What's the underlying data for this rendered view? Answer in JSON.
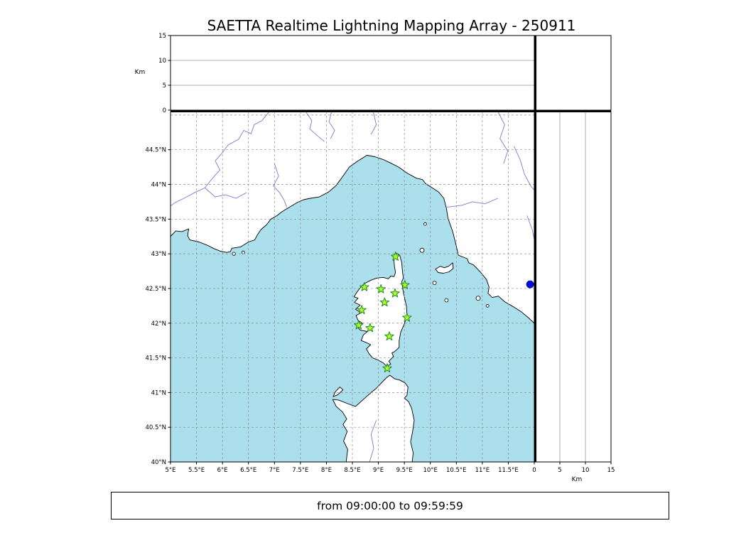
{
  "title": "SAETTA Realtime Lightning Mapping Array - 250911",
  "footer": {
    "text": "from 09:00:00 to 09:59:59"
  },
  "axes": {
    "km_label_left": "Km",
    "km_label_bottom": "Km",
    "alt_tick_labels": [
      "0",
      "5",
      "10",
      "15"
    ],
    "km_tick_labels": [
      "0",
      "5",
      "10",
      "15"
    ],
    "lon_tick_labels": [
      "5°E",
      "5.5°E",
      "6°E",
      "6.5°E",
      "7°E",
      "7.5°E",
      "8°E",
      "8.5°E",
      "9°E",
      "9.5°E",
      "10°E",
      "10.5°E",
      "11°E",
      "11.5°E"
    ],
    "lat_tick_labels": [
      "40°N",
      "40.5°N",
      "41°N",
      "41.5°N",
      "42°N",
      "42.5°N",
      "43°N",
      "43.5°N",
      "44°N",
      "44.5°N"
    ]
  },
  "colors": {
    "sea": "#abdfec",
    "land": "#ffffff",
    "coast": "#000000",
    "river": "#7a7ad1",
    "grid": "#8c8c8c",
    "panel_grid": "#999999",
    "station_fill": "#adff2f",
    "station_edge": "#1e8b1e",
    "event": "#0a0acc",
    "frame": "#000000"
  },
  "chart_data": {
    "type": "scatter",
    "title": "SAETTA Realtime Lightning Mapping Array - 250911",
    "time_window": "from 09:00:00 to 09:59:59",
    "map_extent": {
      "lon_min": 5.0,
      "lon_max": 12.0,
      "lat_min": 40.0,
      "lat_max": 45.05
    },
    "altitude_km_range": [
      0,
      15
    ],
    "altitude_ticks": [
      0,
      5,
      10,
      15
    ],
    "altitude_gridlines_km": [
      5,
      10
    ],
    "lon_ticks": [
      5,
      5.5,
      6,
      6.5,
      7,
      7.5,
      8,
      8.5,
      9,
      9.5,
      10,
      10.5,
      11,
      11.5
    ],
    "lat_ticks": [
      40,
      40.5,
      41,
      41.5,
      42,
      42.5,
      43,
      43.5,
      44,
      44.5
    ],
    "lon_gridlines": [
      5.5,
      6,
      6.5,
      7,
      7.5,
      8,
      8.5,
      9,
      9.5,
      10,
      10.5,
      11,
      11.5
    ],
    "lat_gridlines": [
      40.5,
      41,
      41.5,
      42,
      42.5,
      43,
      43.5,
      44,
      44.5,
      45
    ],
    "stations": [
      {
        "lon": 9.33,
        "lat": 42.96
      },
      {
        "lon": 8.73,
        "lat": 42.52
      },
      {
        "lon": 9.05,
        "lat": 42.49
      },
      {
        "lon": 9.51,
        "lat": 42.55
      },
      {
        "lon": 9.32,
        "lat": 42.43
      },
      {
        "lon": 9.12,
        "lat": 42.3
      },
      {
        "lon": 8.68,
        "lat": 42.19
      },
      {
        "lon": 9.55,
        "lat": 42.08
      },
      {
        "lon": 8.62,
        "lat": 41.97
      },
      {
        "lon": 8.84,
        "lat": 41.93
      },
      {
        "lon": 9.21,
        "lat": 41.81
      },
      {
        "lon": 9.17,
        "lat": 41.35
      }
    ],
    "events": [
      {
        "lon": 11.92,
        "lat": 42.56
      }
    ]
  },
  "basemap": {
    "mainland": [
      [
        5.0,
        43.25
      ],
      [
        5.1,
        43.33
      ],
      [
        5.22,
        43.32
      ],
      [
        5.35,
        43.36
      ],
      [
        5.33,
        43.26
      ],
      [
        5.37,
        43.2
      ],
      [
        5.55,
        43.17
      ],
      [
        5.72,
        43.12
      ],
      [
        5.82,
        43.08
      ],
      [
        5.95,
        43.04
      ],
      [
        6.08,
        43.02
      ],
      [
        6.15,
        43.03
      ],
      [
        6.18,
        43.08
      ],
      [
        6.35,
        43.1
      ],
      [
        6.5,
        43.17
      ],
      [
        6.62,
        43.2
      ],
      [
        6.67,
        43.27
      ],
      [
        6.74,
        43.35
      ],
      [
        6.85,
        43.42
      ],
      [
        6.93,
        43.5
      ],
      [
        7.05,
        43.55
      ],
      [
        7.13,
        43.6
      ],
      [
        7.26,
        43.66
      ],
      [
        7.44,
        43.74
      ],
      [
        7.56,
        43.78
      ],
      [
        7.69,
        43.8
      ],
      [
        7.86,
        43.82
      ],
      [
        8.04,
        43.89
      ],
      [
        8.18,
        43.98
      ],
      [
        8.31,
        44.11
      ],
      [
        8.44,
        44.25
      ],
      [
        8.61,
        44.34
      ],
      [
        8.78,
        44.42
      ],
      [
        8.93,
        44.4
      ],
      [
        9.09,
        44.36
      ],
      [
        9.23,
        44.31
      ],
      [
        9.39,
        44.25
      ],
      [
        9.56,
        44.16
      ],
      [
        9.73,
        44.09
      ],
      [
        9.85,
        44.07
      ],
      [
        9.91,
        44.01
      ],
      [
        10.04,
        43.95
      ],
      [
        10.16,
        43.89
      ],
      [
        10.26,
        43.8
      ],
      [
        10.31,
        43.65
      ],
      [
        10.34,
        43.51
      ],
      [
        10.43,
        43.32
      ],
      [
        10.49,
        43.14
      ],
      [
        10.54,
        42.98
      ],
      [
        10.64,
        42.95
      ],
      [
        10.71,
        42.93
      ],
      [
        10.74,
        42.87
      ],
      [
        10.83,
        42.84
      ],
      [
        10.96,
        42.74
      ],
      [
        11.08,
        42.63
      ],
      [
        11.13,
        42.52
      ],
      [
        11.11,
        42.43
      ],
      [
        11.19,
        42.37
      ],
      [
        11.31,
        42.39
      ],
      [
        11.43,
        42.31
      ],
      [
        11.59,
        42.24
      ],
      [
        11.74,
        42.17
      ],
      [
        11.87,
        42.09
      ],
      [
        12.0,
        42.0
      ],
      [
        12.0,
        45.05
      ],
      [
        5.0,
        45.05
      ]
    ],
    "corsica": [
      [
        9.35,
        43.01
      ],
      [
        9.41,
        42.98
      ],
      [
        9.45,
        42.87
      ],
      [
        9.46,
        42.77
      ],
      [
        9.48,
        42.65
      ],
      [
        9.45,
        42.6
      ],
      [
        9.47,
        42.49
      ],
      [
        9.5,
        42.38
      ],
      [
        9.54,
        42.24
      ],
      [
        9.55,
        42.11
      ],
      [
        9.5,
        41.99
      ],
      [
        9.43,
        41.87
      ],
      [
        9.4,
        41.75
      ],
      [
        9.4,
        41.65
      ],
      [
        9.31,
        41.59
      ],
      [
        9.26,
        41.57
      ],
      [
        9.29,
        41.52
      ],
      [
        9.2,
        41.45
      ],
      [
        9.24,
        41.41
      ],
      [
        9.16,
        41.38
      ],
      [
        9.09,
        41.43
      ],
      [
        8.99,
        41.47
      ],
      [
        8.89,
        41.5
      ],
      [
        8.82,
        41.56
      ],
      [
        8.77,
        41.63
      ],
      [
        8.85,
        41.69
      ],
      [
        8.77,
        41.72
      ],
      [
        8.67,
        41.75
      ],
      [
        8.71,
        41.83
      ],
      [
        8.79,
        41.88
      ],
      [
        8.65,
        41.9
      ],
      [
        8.59,
        41.95
      ],
      [
        8.69,
        42.0
      ],
      [
        8.61,
        42.04
      ],
      [
        8.57,
        42.11
      ],
      [
        8.67,
        42.15
      ],
      [
        8.56,
        42.2
      ],
      [
        8.65,
        42.26
      ],
      [
        8.54,
        42.3
      ],
      [
        8.61,
        42.36
      ],
      [
        8.53,
        42.38
      ],
      [
        8.59,
        42.45
      ],
      [
        8.65,
        42.51
      ],
      [
        8.73,
        42.57
      ],
      [
        8.86,
        42.62
      ],
      [
        8.97,
        42.65
      ],
      [
        9.09,
        42.66
      ],
      [
        9.19,
        42.64
      ],
      [
        9.24,
        42.68
      ],
      [
        9.3,
        42.67
      ],
      [
        9.33,
        42.73
      ],
      [
        9.31,
        42.82
      ],
      [
        9.3,
        42.91
      ],
      [
        9.32,
        42.98
      ]
    ],
    "sardinia": [
      [
        8.38,
        40.0
      ],
      [
        8.41,
        40.18
      ],
      [
        8.33,
        40.3
      ],
      [
        8.4,
        40.44
      ],
      [
        8.32,
        40.54
      ],
      [
        8.39,
        40.62
      ],
      [
        8.31,
        40.72
      ],
      [
        8.19,
        40.8
      ],
      [
        8.12,
        40.9
      ],
      [
        8.24,
        40.89
      ],
      [
        8.41,
        40.84
      ],
      [
        8.56,
        40.8
      ],
      [
        8.71,
        40.9
      ],
      [
        8.86,
        41.0
      ],
      [
        8.96,
        41.06
      ],
      [
        9.06,
        41.14
      ],
      [
        9.15,
        41.21
      ],
      [
        9.22,
        41.25
      ],
      [
        9.31,
        41.2
      ],
      [
        9.41,
        41.18
      ],
      [
        9.51,
        41.14
      ],
      [
        9.57,
        41.08
      ],
      [
        9.55,
        40.96
      ],
      [
        9.5,
        40.92
      ],
      [
        9.58,
        40.87
      ],
      [
        9.64,
        40.77
      ],
      [
        9.69,
        40.6
      ],
      [
        9.66,
        40.44
      ],
      [
        9.62,
        40.29
      ],
      [
        9.67,
        40.13
      ],
      [
        9.65,
        40.0
      ]
    ],
    "island_polygons": [
      {
        "name": "elba",
        "pts": [
          [
            10.1,
            42.78
          ],
          [
            10.19,
            42.82
          ],
          [
            10.27,
            42.8
          ],
          [
            10.35,
            42.82
          ],
          [
            10.43,
            42.87
          ],
          [
            10.44,
            42.79
          ],
          [
            10.36,
            42.74
          ],
          [
            10.25,
            42.72
          ],
          [
            10.15,
            42.73
          ]
        ]
      },
      {
        "name": "asinara",
        "pts": [
          [
            8.13,
            40.94
          ],
          [
            8.22,
            40.97
          ],
          [
            8.32,
            41.04
          ],
          [
            8.26,
            41.08
          ],
          [
            8.17,
            41.01
          ]
        ]
      }
    ],
    "island_circles": [
      {
        "name": "capraia",
        "lon": 9.84,
        "lat": 43.05,
        "r": 3
      },
      {
        "name": "gorgona",
        "lon": 9.9,
        "lat": 43.43,
        "r": 2
      },
      {
        "name": "pianosa",
        "lon": 10.08,
        "lat": 42.58,
        "r": 2.5
      },
      {
        "name": "montecristo",
        "lon": 10.31,
        "lat": 42.33,
        "r": 2.5
      },
      {
        "name": "giglio",
        "lon": 10.92,
        "lat": 42.36,
        "r": 3
      },
      {
        "name": "giannutri",
        "lon": 11.1,
        "lat": 42.25,
        "r": 2
      },
      {
        "name": "porquerolles",
        "lon": 6.22,
        "lat": 43.0,
        "r": 2.2
      },
      {
        "name": "port-cros",
        "lon": 6.4,
        "lat": 43.02,
        "r": 2
      }
    ],
    "rivers": [
      [
        [
          6.9,
          45.05
        ],
        [
          6.76,
          44.92
        ],
        [
          6.61,
          44.86
        ],
        [
          6.55,
          44.73
        ],
        [
          6.41,
          44.78
        ],
        [
          6.31,
          44.65
        ],
        [
          6.11,
          44.57
        ],
        [
          5.99,
          44.45
        ],
        [
          5.86,
          44.34
        ],
        [
          5.95,
          44.21
        ],
        [
          5.81,
          44.09
        ],
        [
          5.66,
          43.95
        ],
        [
          5.46,
          43.88
        ],
        [
          5.26,
          43.8
        ],
        [
          5.09,
          43.74
        ],
        [
          5.0,
          43.69
        ]
      ],
      [
        [
          6.46,
          43.88
        ],
        [
          6.26,
          43.8
        ],
        [
          6.06,
          43.85
        ],
        [
          5.86,
          43.82
        ],
        [
          5.66,
          43.95
        ]
      ],
      [
        [
          7.0,
          44.3
        ],
        [
          7.08,
          44.12
        ],
        [
          6.98,
          43.98
        ],
        [
          7.1,
          43.88
        ],
        [
          7.18,
          43.78
        ],
        [
          7.24,
          43.67
        ]
      ],
      [
        [
          7.6,
          45.05
        ],
        [
          7.72,
          44.92
        ],
        [
          7.68,
          44.8
        ],
        [
          7.83,
          44.7
        ],
        [
          7.96,
          44.62
        ]
      ],
      [
        [
          8.1,
          45.05
        ],
        [
          8.05,
          44.9
        ],
        [
          8.16,
          44.78
        ],
        [
          8.08,
          44.66
        ]
      ],
      [
        [
          8.9,
          45.05
        ],
        [
          8.96,
          44.86
        ],
        [
          8.86,
          44.72
        ]
      ],
      [
        [
          11.3,
          43.8
        ],
        [
          11.05,
          43.72
        ],
        [
          10.81,
          43.75
        ],
        [
          10.61,
          43.7
        ],
        [
          10.41,
          43.68
        ],
        [
          10.29,
          43.67
        ]
      ],
      [
        [
          11.3,
          45.05
        ],
        [
          11.43,
          44.86
        ],
        [
          11.34,
          44.66
        ],
        [
          11.49,
          44.48
        ],
        [
          11.41,
          44.3
        ]
      ],
      [
        [
          11.61,
          44.55
        ],
        [
          11.73,
          44.35
        ],
        [
          11.81,
          44.15
        ],
        [
          11.93,
          43.98
        ],
        [
          12.0,
          43.92
        ]
      ],
      [
        [
          11.86,
          43.55
        ],
        [
          11.96,
          43.35
        ],
        [
          12.0,
          43.21
        ]
      ],
      [
        [
          8.96,
          40.6
        ],
        [
          8.86,
          40.4
        ],
        [
          8.91,
          40.2
        ],
        [
          8.83,
          40.0
        ]
      ]
    ]
  }
}
